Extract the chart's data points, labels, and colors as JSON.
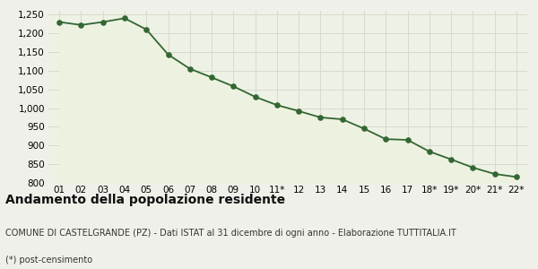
{
  "x_labels": [
    "01",
    "02",
    "03",
    "04",
    "05",
    "06",
    "07",
    "08",
    "09",
    "10",
    "11*",
    "12",
    "13",
    "14",
    "15",
    "16",
    "17",
    "18*",
    "19*",
    "20*",
    "21*",
    "22*"
  ],
  "y_values": [
    1230,
    1222,
    1230,
    1240,
    1210,
    1143,
    1105,
    1082,
    1058,
    1030,
    1008,
    992,
    975,
    970,
    945,
    917,
    915,
    884,
    863,
    841,
    824,
    816
  ],
  "ylim": [
    800,
    1260
  ],
  "yticks": [
    800,
    850,
    900,
    950,
    1000,
    1050,
    1100,
    1150,
    1200,
    1250
  ],
  "line_color": "#336633",
  "fill_color": "#edf2e0",
  "marker_color": "#336633",
  "bg_color": "#f0f0eb",
  "plot_bg_color": "#eef2e4",
  "grid_color": "#d8d8d0",
  "title": "Andamento della popolazione residente",
  "subtitle": "COMUNE DI CASTELGRANDE (PZ) - Dati ISTAT al 31 dicembre di ogni anno - Elaborazione TUTTITALIA.IT",
  "footnote": "(*) post-censimento",
  "title_fontsize": 10,
  "subtitle_fontsize": 7,
  "footnote_fontsize": 7
}
